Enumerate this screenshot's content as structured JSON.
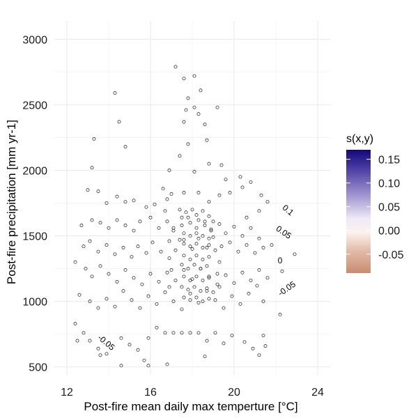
{
  "chart_data": {
    "type": "heatmap",
    "x_label": "Post-fire mean daily max temperture [°C]",
    "y_label": "Post-fire precipitation [mm yr-1]",
    "xlim": [
      11.4,
      24.6
    ],
    "ylim": [
      440,
      3140
    ],
    "x_ticks": [
      12,
      16,
      20,
      24
    ],
    "y_ticks": [
      500,
      1000,
      1500,
      2000,
      2500,
      3000
    ],
    "x_tick_labels": [
      "12",
      "16",
      "20",
      "24"
    ],
    "y_tick_labels": [
      "500",
      "1000",
      "1500",
      "2000",
      "2500",
      "3000"
    ],
    "grid": true,
    "legend": {
      "title": "s(x,y)",
      "position": "right",
      "range": [
        -0.09,
        0.17
      ],
      "ticks": [
        0.15,
        0.1,
        0.05,
        0.0,
        -0.05
      ],
      "tick_labels": [
        "0.15",
        "0.10",
        "0.05",
        "0.00",
        "-0.05"
      ],
      "colors": {
        "negative": "#c98c6e",
        "neutral": "#f9f5f6",
        "positive": "#14067e"
      }
    },
    "contour_labels": [
      {
        "text": "0.1",
        "x": 22.5,
        "y": 1680,
        "angle": 40
      },
      {
        "text": "0.05",
        "x": 22.3,
        "y": 1510,
        "angle": 35
      },
      {
        "text": "0",
        "x": 22.2,
        "y": 1290,
        "angle": 0
      },
      {
        "text": "-0.05",
        "x": 22.6,
        "y": 1080,
        "angle": -35
      },
      {
        "text": "-0.05",
        "x": 13.8,
        "y": 670,
        "angle": 40
      }
    ],
    "domain_columns": [
      {
        "x0": 12.2,
        "x1": 12.8,
        "ymin": 590,
        "ymax": 2310
      },
      {
        "x0": 12.8,
        "x1": 13.4,
        "ymin": 590,
        "ymax": 2740
      },
      {
        "x0": 13.4,
        "x1": 14.6,
        "ymin": 590,
        "ymax": 2930
      },
      {
        "x0": 14.6,
        "x1": 15.2,
        "ymin": 590,
        "ymax": 2740
      },
      {
        "x0": 15.2,
        "x1": 15.8,
        "ymin": 590,
        "ymax": 2560
      },
      {
        "x0": 15.8,
        "x1": 18.2,
        "ymin": 590,
        "ymax": 2930
      },
      {
        "x0": 18.2,
        "x1": 19.4,
        "ymin": 590,
        "ymax": 2740
      },
      {
        "x0": 19.4,
        "x1": 20.0,
        "ymin": 590,
        "ymax": 2560
      },
      {
        "x0": 20.0,
        "x1": 20.6,
        "ymin": 590,
        "ymax": 2310
      },
      {
        "x0": 20.6,
        "x1": 21.2,
        "ymin": 590,
        "ymax": 2310
      },
      {
        "x0": 21.2,
        "x1": 21.5,
        "ymin": 590,
        "ymax": 2310
      },
      {
        "x0": 21.5,
        "x1": 21.8,
        "ymin": 770,
        "ymax": 2200
      },
      {
        "x0": 21.8,
        "x1": 22.4,
        "ymin": 900,
        "ymax": 2010
      },
      {
        "x0": 22.4,
        "x1": 22.8,
        "ymin": 960,
        "ymax": 1580
      }
    ],
    "points": [
      [
        13.3,
        2240
      ],
      [
        14.3,
        2590
      ],
      [
        14.5,
        2370
      ],
      [
        14.8,
        2180
      ],
      [
        13.2,
        2020
      ],
      [
        13.0,
        1850
      ],
      [
        13.5,
        1840
      ],
      [
        13.9,
        1750
      ],
      [
        14.4,
        1800
      ],
      [
        14.8,
        1760
      ],
      [
        15.2,
        1770
      ],
      [
        15.8,
        1720
      ],
      [
        16.2,
        1740
      ],
      [
        16.6,
        1860
      ],
      [
        16.8,
        1780
      ],
      [
        17.0,
        1820
      ],
      [
        17.6,
        1830
      ],
      [
        18.3,
        1830
      ],
      [
        18.8,
        1760
      ],
      [
        19.3,
        1810
      ],
      [
        19.8,
        1830
      ],
      [
        20.4,
        1870
      ],
      [
        20.8,
        1910
      ],
      [
        21.3,
        1810
      ],
      [
        21.6,
        1760
      ],
      [
        21.2,
        1690
      ],
      [
        20.6,
        1640
      ],
      [
        13.2,
        1620
      ],
      [
        13.6,
        1600
      ],
      [
        14.0,
        1560
      ],
      [
        14.4,
        1620
      ],
      [
        14.8,
        1580
      ],
      [
        15.2,
        1540
      ],
      [
        15.5,
        1610
      ],
      [
        16.0,
        1640
      ],
      [
        16.4,
        1560
      ],
      [
        16.8,
        1610
      ],
      [
        17.1,
        1540
      ],
      [
        17.5,
        1580
      ],
      [
        17.8,
        1640
      ],
      [
        18.2,
        1560
      ],
      [
        18.6,
        1610
      ],
      [
        18.9,
        1540
      ],
      [
        19.3,
        1590
      ],
      [
        19.6,
        1520
      ],
      [
        20.0,
        1570
      ],
      [
        20.4,
        1500
      ],
      [
        20.8,
        1560
      ],
      [
        21.2,
        1480
      ],
      [
        12.7,
        1580
      ],
      [
        12.8,
        1420
      ],
      [
        13.1,
        1460
      ],
      [
        13.5,
        1380
      ],
      [
        13.9,
        1430
      ],
      [
        14.3,
        1360
      ],
      [
        14.7,
        1410
      ],
      [
        15.1,
        1340
      ],
      [
        15.4,
        1420
      ],
      [
        15.8,
        1370
      ],
      [
        16.1,
        1450
      ],
      [
        16.5,
        1380
      ],
      [
        16.9,
        1460
      ],
      [
        17.2,
        1390
      ],
      [
        17.6,
        1470
      ],
      [
        18.0,
        1400
      ],
      [
        18.3,
        1480
      ],
      [
        18.7,
        1410
      ],
      [
        19.0,
        1490
      ],
      [
        19.4,
        1420
      ],
      [
        19.8,
        1450
      ],
      [
        20.2,
        1380
      ],
      [
        20.6,
        1430
      ],
      [
        21.0,
        1370
      ],
      [
        21.4,
        1410
      ],
      [
        21.8,
        1430
      ],
      [
        12.4,
        1300
      ],
      [
        12.9,
        1250
      ],
      [
        13.2,
        1190
      ],
      [
        13.6,
        1270
      ],
      [
        14.0,
        1210
      ],
      [
        14.4,
        1150
      ],
      [
        14.8,
        1240
      ],
      [
        15.2,
        1180
      ],
      [
        15.6,
        1130
      ],
      [
        16.0,
        1210
      ],
      [
        16.4,
        1150
      ],
      [
        16.8,
        1220
      ],
      [
        17.2,
        1160
      ],
      [
        17.6,
        1240
      ],
      [
        18.0,
        1170
      ],
      [
        18.4,
        1250
      ],
      [
        18.8,
        1190
      ],
      [
        19.2,
        1130
      ],
      [
        19.6,
        1200
      ],
      [
        20.0,
        1140
      ],
      [
        20.4,
        1220
      ],
      [
        20.8,
        1160
      ],
      [
        21.2,
        1240
      ],
      [
        21.6,
        1180
      ],
      [
        22.3,
        1230
      ],
      [
        22.9,
        1360
      ],
      [
        12.6,
        1050
      ],
      [
        13.1,
        1000
      ],
      [
        13.5,
        950
      ],
      [
        13.9,
        1020
      ],
      [
        14.3,
        960
      ],
      [
        14.7,
        1080
      ],
      [
        15.1,
        1010
      ],
      [
        15.5,
        950
      ],
      [
        15.9,
        1040
      ],
      [
        16.3,
        980
      ],
      [
        16.7,
        1070
      ],
      [
        17.1,
        1000
      ],
      [
        17.5,
        940
      ],
      [
        17.9,
        1060
      ],
      [
        18.3,
        990
      ],
      [
        18.7,
        1080
      ],
      [
        19.1,
        1010
      ],
      [
        19.5,
        950
      ],
      [
        19.9,
        1040
      ],
      [
        20.3,
        980
      ],
      [
        20.7,
        1060
      ],
      [
        21.1,
        1120
      ],
      [
        21.4,
        1000
      ],
      [
        12.4,
        830
      ],
      [
        12.8,
        760
      ],
      [
        13.1,
        700
      ],
      [
        13.5,
        640
      ],
      [
        13.9,
        600
      ],
      [
        13.6,
        590
      ],
      [
        12.5,
        700
      ],
      [
        14.6,
        720
      ],
      [
        15.0,
        670
      ],
      [
        15.4,
        630
      ],
      [
        15.9,
        720
      ],
      [
        16.3,
        800
      ],
      [
        16.7,
        760
      ],
      [
        17.1,
        760
      ],
      [
        17.5,
        760
      ],
      [
        17.9,
        760
      ],
      [
        18.3,
        760
      ],
      [
        18.7,
        700
      ],
      [
        19.1,
        760
      ],
      [
        19.5,
        680
      ],
      [
        19.9,
        740
      ],
      [
        20.5,
        690
      ],
      [
        20.9,
        640
      ],
      [
        21.4,
        740
      ],
      [
        14.6,
        510
      ],
      [
        15.7,
        550
      ],
      [
        16.8,
        520
      ],
      [
        17.2,
        2790
      ],
      [
        17.6,
        2700
      ],
      [
        18.1,
        2720
      ],
      [
        18.4,
        2610
      ],
      [
        17.8,
        2550
      ],
      [
        18.1,
        2480
      ],
      [
        17.7,
        2460
      ],
      [
        18.3,
        2430
      ],
      [
        18.6,
        2350
      ],
      [
        19.2,
        2480
      ],
      [
        17.6,
        2370
      ],
      [
        18.7,
        2230
      ],
      [
        19.4,
        2040
      ],
      [
        18.8,
        2050
      ],
      [
        17.8,
        2200
      ],
      [
        16.9,
        2000
      ],
      [
        17.4,
        2110
      ],
      [
        18.1,
        1990
      ],
      [
        19.6,
        1930
      ],
      [
        20.3,
        1950
      ],
      [
        17.4,
        1700
      ],
      [
        17.7,
        1680
      ],
      [
        18.0,
        1700
      ],
      [
        18.2,
        1660
      ],
      [
        18.5,
        1690
      ],
      [
        18.8,
        1650
      ],
      [
        17.5,
        1640
      ],
      [
        17.9,
        1600
      ],
      [
        18.3,
        1620
      ],
      [
        18.6,
        1580
      ],
      [
        18.9,
        1550
      ],
      [
        17.6,
        1520
      ],
      [
        17.9,
        1500
      ],
      [
        18.2,
        1520
      ],
      [
        18.5,
        1500
      ],
      [
        18.8,
        1480
      ],
      [
        17.6,
        1440
      ],
      [
        17.9,
        1420
      ],
      [
        18.2,
        1440
      ],
      [
        18.5,
        1410
      ],
      [
        18.8,
        1430
      ],
      [
        17.6,
        1350
      ],
      [
        17.9,
        1320
      ],
      [
        18.2,
        1350
      ],
      [
        18.5,
        1320
      ],
      [
        18.8,
        1340
      ],
      [
        17.5,
        1280
      ],
      [
        17.8,
        1250
      ],
      [
        18.1,
        1280
      ],
      [
        18.4,
        1250
      ],
      [
        18.7,
        1270
      ],
      [
        17.6,
        1190
      ],
      [
        17.9,
        1160
      ],
      [
        18.2,
        1190
      ],
      [
        18.5,
        1160
      ],
      [
        18.8,
        1180
      ],
      [
        17.5,
        1110
      ],
      [
        17.8,
        1090
      ],
      [
        18.1,
        1110
      ],
      [
        18.4,
        1080
      ],
      [
        18.7,
        1100
      ],
      [
        19.0,
        1070
      ],
      [
        17.6,
        1030
      ],
      [
        17.9,
        1010
      ],
      [
        18.2,
        1030
      ],
      [
        18.5,
        1000
      ],
      [
        18.8,
        1020
      ],
      [
        17.4,
        1470
      ],
      [
        19.1,
        1390
      ],
      [
        19.3,
        1300
      ],
      [
        16.9,
        1330
      ],
      [
        17.0,
        1240
      ],
      [
        16.9,
        1110
      ],
      [
        19.2,
        1210
      ],
      [
        19.3,
        1110
      ],
      [
        17.1,
        1560
      ],
      [
        19.0,
        1610
      ],
      [
        16.7,
        1690
      ],
      [
        18.6,
        580
      ],
      [
        21.2,
        590
      ],
      [
        21.5,
        660
      ],
      [
        22.2,
        900
      ],
      [
        15.9,
        510
      ]
    ]
  }
}
